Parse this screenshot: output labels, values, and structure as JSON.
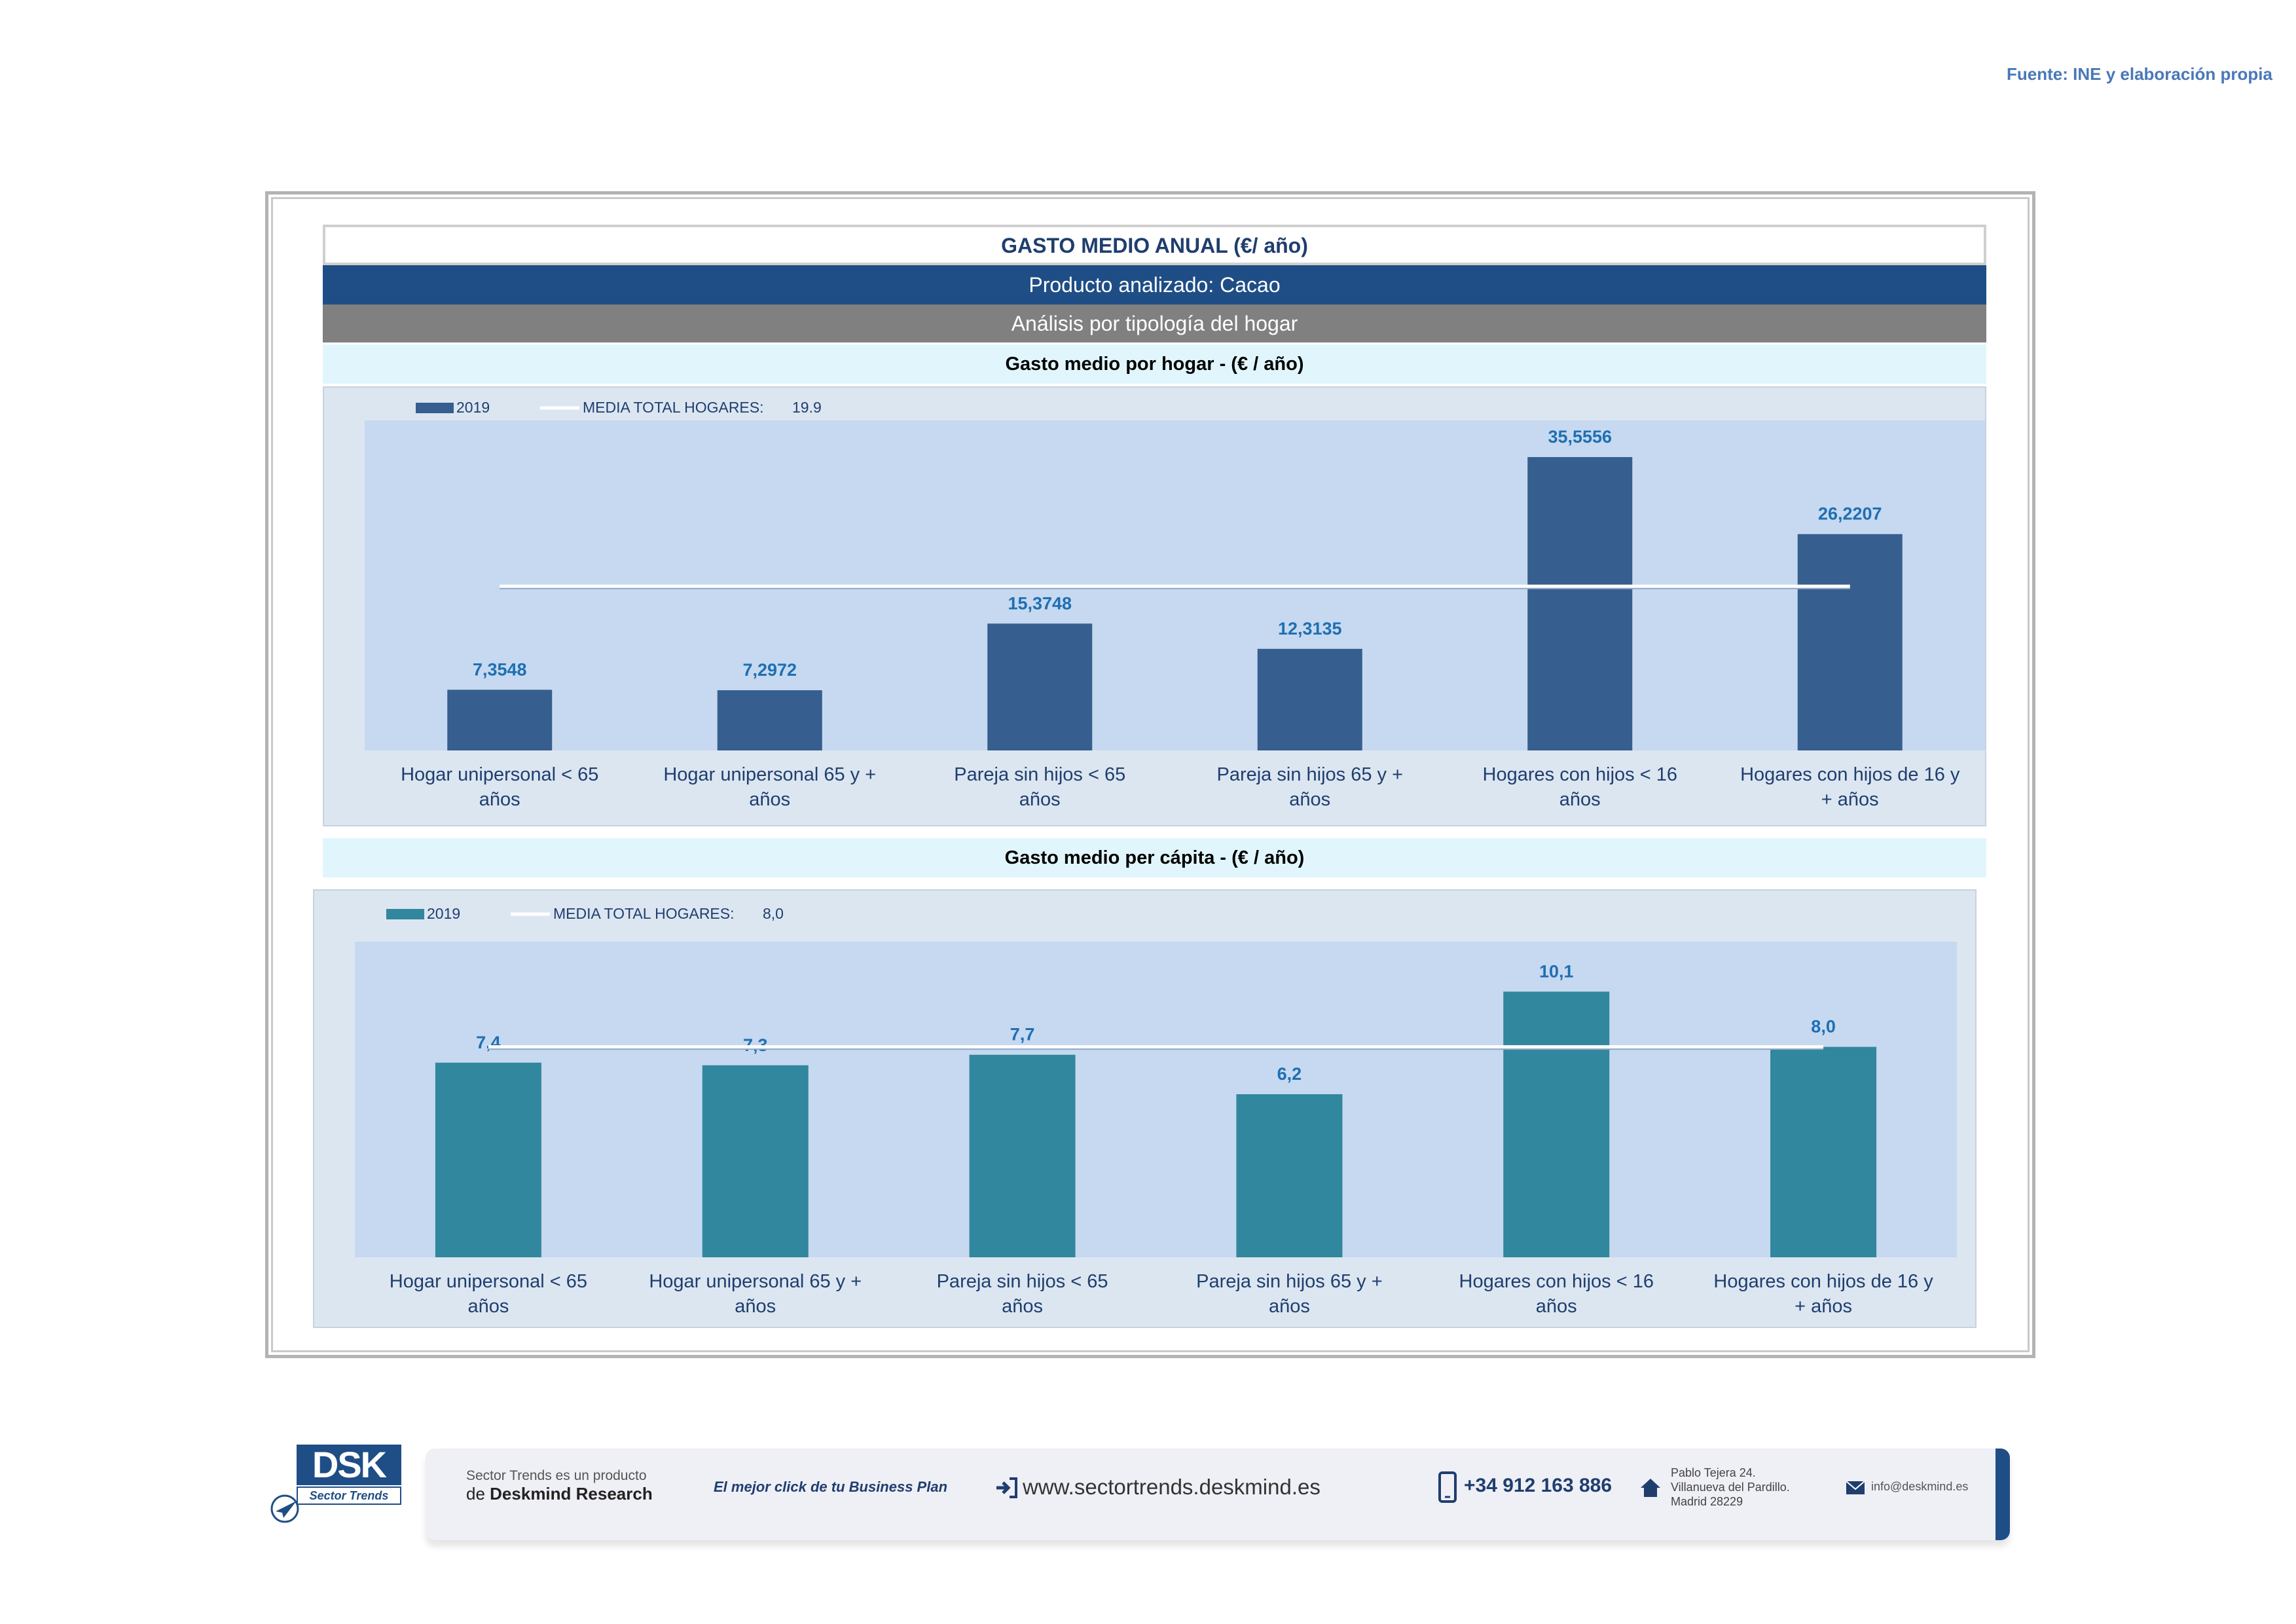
{
  "source": "Fuente: INE y elaboración propia",
  "header": {
    "title": "GASTO MEDIO ANUAL (€/ año)",
    "product": "Producto analizado: Cacao",
    "analysis": "Análisis por tipología del hogar"
  },
  "colors": {
    "bar1": "#365e8e",
    "bar2": "#31879d",
    "plot_bg": "#c6d9f0",
    "panel_bg": "#dce6f1",
    "label": "#1f6fb2",
    "avg_line": "#ffffff"
  },
  "chart_data": [
    {
      "type": "bar",
      "title": "Gasto medio por hogar -  (€ / año)",
      "categories": [
        "Hogar unipersonal < 65 años",
        "Hogar unipersonal  65 y + años",
        "Pareja sin hijos < 65 años",
        "Pareja sin hijos 65 y + años",
        "Hogares con hijos < 16 años",
        "Hogares con hijos de 16 y + años"
      ],
      "series": [
        {
          "name": "2019",
          "values": [
            7.3548,
            7.2972,
            15.3748,
            12.3135,
            35.5556,
            26.2207
          ]
        }
      ],
      "value_labels": [
        "7,3548",
        "7,2972",
        "15,3748",
        "12,3135",
        "35,5556",
        "26,2207"
      ],
      "average": {
        "label": "MEDIA TOTAL  HOGARES:",
        "value": 19.9,
        "display": "19.9"
      },
      "ylim": [
        0,
        40
      ],
      "legend": "top-left",
      "grid": false
    },
    {
      "type": "bar",
      "title": "Gasto medio per cápita -  (€ / año)",
      "categories": [
        "Hogar unipersonal < 65 años",
        "Hogar unipersonal  65 y + años",
        "Pareja sin hijos < 65 años",
        "Pareja sin hijos 65 y + años",
        "Hogares con hijos < 16 años",
        "Hogares con hijos de 16 y + años"
      ],
      "series": [
        {
          "name": "2019",
          "values": [
            7.4,
            7.3,
            7.7,
            6.2,
            10.1,
            8.0
          ]
        }
      ],
      "value_labels": [
        "7,4",
        "7,3",
        "7,7",
        "6,2",
        "10,1",
        "8,0"
      ],
      "average": {
        "label": "MEDIA TOTAL  HOGARES:",
        "value": 8.0,
        "display": "8,0"
      },
      "ylim": [
        0,
        12
      ],
      "legend": "top-left",
      "grid": false
    }
  ],
  "footer": {
    "logo_text": "DSK",
    "logo_sub": "Sector Trends",
    "product_line1": "Sector Trends es un producto",
    "product_line2_pre": "de",
    "product_line2_brand": "Deskmind Research",
    "slogan": "El mejor click de tu Business Plan",
    "website": "www.sectortrends.deskmind.es",
    "phone": "+34 912 163 886",
    "address1": "Pablo Tejera 24.",
    "address2": "Villanueva del Pardillo.",
    "address3": "Madrid 28229",
    "email": "info@deskmind.es"
  }
}
